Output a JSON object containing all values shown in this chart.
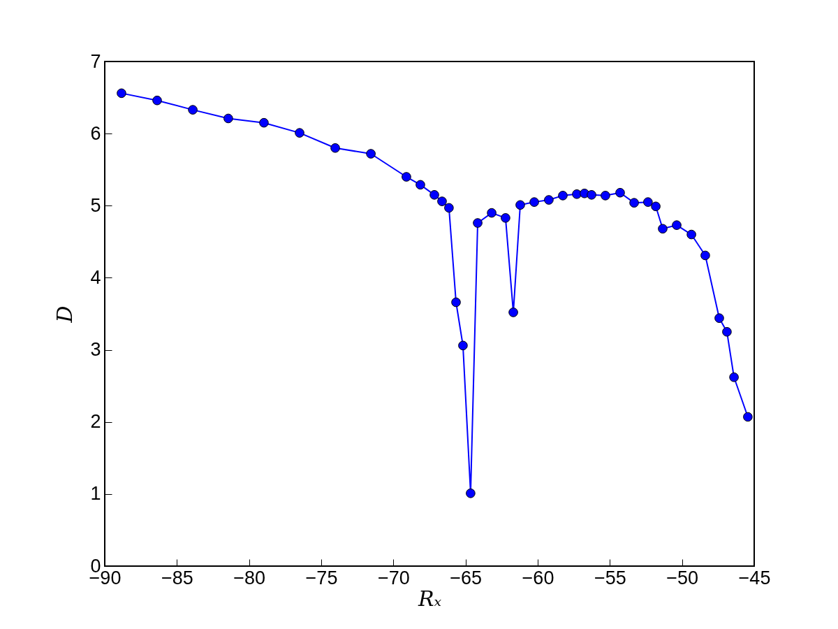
{
  "chart_data": {
    "type": "line",
    "xlabel": "Rₓ",
    "ylabel": "D",
    "marker": "circle",
    "xlim": [
      -90,
      -45
    ],
    "xticks": [
      -90,
      -85,
      -80,
      -75,
      -70,
      -65,
      -60,
      -55,
      -50,
      -45
    ],
    "ylim": [
      0,
      7
    ],
    "yticks": [
      0,
      1,
      2,
      3,
      4,
      5,
      6,
      7
    ],
    "grid": false,
    "series": [
      {
        "color": "#0000ff",
        "x": [
          -88.84,
          -86.37,
          -83.9,
          -81.44,
          -78.97,
          -76.5,
          -74.03,
          -71.56,
          -69.1,
          -68.13,
          -67.16,
          -66.63,
          -66.15,
          -65.66,
          -65.18,
          -64.65,
          -64.16,
          -63.19,
          -62.23,
          -61.69,
          -61.21,
          -60.24,
          -59.23,
          -58.26,
          -57.29,
          -56.76,
          -56.27,
          -55.31,
          -54.29,
          -53.32,
          -52.36,
          -51.82,
          -51.34,
          -50.37,
          -49.35,
          -48.39,
          -47.42,
          -46.89,
          -46.4,
          -45.44
        ],
        "values": [
          6.56,
          6.46,
          6.33,
          6.21,
          6.15,
          6.01,
          5.8,
          5.72,
          5.4,
          5.29,
          5.15,
          5.06,
          4.97,
          3.66,
          3.06,
          1.01,
          4.76,
          4.9,
          4.83,
          3.52,
          5.01,
          5.05,
          5.08,
          5.14,
          5.16,
          5.17,
          5.15,
          5.14,
          5.18,
          5.04,
          5.05,
          4.99,
          4.68,
          4.73,
          4.6,
          4.31,
          3.44,
          3.25,
          2.62,
          2.07
        ]
      }
    ]
  }
}
